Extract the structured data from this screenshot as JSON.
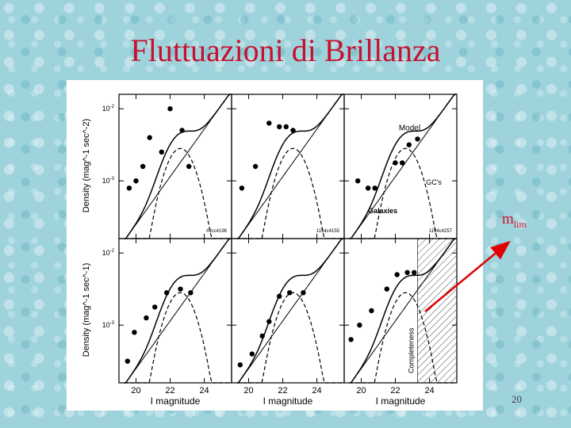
{
  "title": "Fluttuazioni di Brillanza",
  "annotation": {
    "label": "m",
    "sub": "lim",
    "color": "#c8102e"
  },
  "page_number": "20",
  "chart_data": {
    "type": "scatter",
    "layout": "2x3 panel grid",
    "xlabel": "I magnitude",
    "ylabel_top": "Density (mag^-1 sec^-2)",
    "ylabel_bottom": "Density (mag^-1 sec^-1)",
    "x_ticks": [
      "20",
      "22",
      "24"
    ],
    "xlim": [
      19,
      25.6
    ],
    "ylim": [
      -3.8,
      -1.8
    ],
    "y_tick_values": [
      -2,
      -3
    ],
    "y_tick_labels": [
      "10^-2",
      "10^-3"
    ],
    "y_scale": "log",
    "panels": [
      {
        "id": "#3cc4196",
        "points": [
          [
            19.6,
            -3.1
          ],
          [
            20.0,
            -3.0
          ],
          [
            20.4,
            -2.8
          ],
          [
            20.8,
            -2.4
          ],
          [
            21.5,
            -2.6
          ],
          [
            22.0,
            -2.0
          ],
          [
            22.7,
            -2.3
          ],
          [
            23.1,
            -2.8
          ]
        ],
        "annotations": []
      },
      {
        "id": "1154c4155",
        "points": [
          [
            19.6,
            -3.1
          ],
          [
            20.4,
            -2.8
          ],
          [
            21.2,
            -2.2
          ],
          [
            21.8,
            -2.25
          ],
          [
            22.2,
            -2.25
          ],
          [
            22.6,
            -2.3
          ]
        ],
        "annotations": []
      },
      {
        "id": "1194c4257",
        "points": [
          [
            19.8,
            -3.0
          ],
          [
            20.4,
            -3.1
          ],
          [
            20.8,
            -3.1
          ],
          [
            22.0,
            -2.75
          ],
          [
            22.4,
            -2.75
          ],
          [
            22.8,
            -2.5
          ],
          [
            23.3,
            -2.42
          ]
        ],
        "annotations": [
          "Model",
          "GC's",
          "Galaxies"
        ]
      },
      {
        "id": "",
        "points": [
          [
            19.5,
            -3.5
          ],
          [
            19.9,
            -3.1
          ],
          [
            20.6,
            -2.9
          ],
          [
            21.1,
            -2.75
          ],
          [
            21.8,
            -2.55
          ],
          [
            22.6,
            -2.5
          ],
          [
            23.2,
            -2.55
          ]
        ],
        "annotations": []
      },
      {
        "id": "",
        "points": [
          [
            19.5,
            -3.55
          ],
          [
            20.2,
            -3.4
          ],
          [
            20.8,
            -3.15
          ],
          [
            21.2,
            -2.95
          ],
          [
            21.8,
            -2.6
          ],
          [
            22.4,
            -2.55
          ],
          [
            23.2,
            -2.55
          ]
        ],
        "annotations": []
      },
      {
        "id": "",
        "points": [
          [
            19.4,
            -3.2
          ],
          [
            19.9,
            -3.0
          ],
          [
            20.6,
            -2.8
          ],
          [
            21.5,
            -2.5
          ],
          [
            22.1,
            -2.3
          ],
          [
            22.7,
            -2.27
          ],
          [
            23.1,
            -2.27
          ]
        ],
        "annotations": [
          "Completeness"
        ]
      }
    ]
  }
}
